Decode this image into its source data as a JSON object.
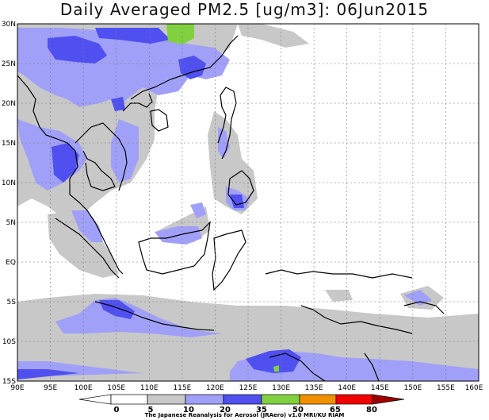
{
  "title": "Daily Averaged PM2.5 [ug/m3]: 06Jun2015",
  "lat_labels": [
    "30N",
    "25N",
    "20N",
    "15N",
    "10N",
    "5N",
    "EQ",
    "5S",
    "10S",
    "15S"
  ],
  "lon_labels": [
    "90E",
    "95E",
    "100E",
    "105E",
    "110E",
    "115E",
    "120E",
    "125E",
    "130E",
    "135E",
    "140E",
    "145E",
    "150E",
    "155E",
    "160E"
  ],
  "legend": {
    "breaks": [
      "0",
      "5",
      "10",
      "20",
      "35",
      "50",
      "65",
      "80"
    ],
    "colors": [
      "#ffffff",
      "#ffffff",
      "#c8c8c8",
      "#a0a0f8",
      "#5050f0",
      "#80d040",
      "#f09000",
      "#f00000",
      "#a00000"
    ]
  },
  "credit": "The Japanese Reanalysis for Aerosol (JRAero) v1.0 MRI/KU RIAM"
}
